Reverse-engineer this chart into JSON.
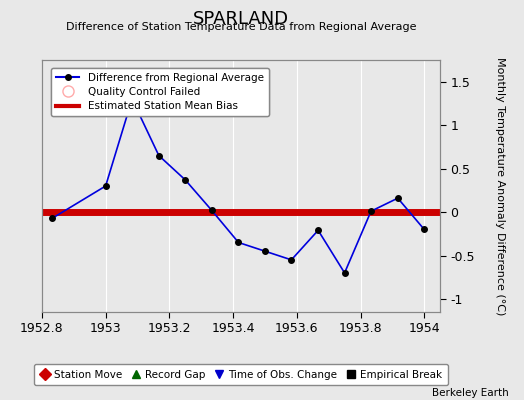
{
  "title": "SPARLAND",
  "subtitle": "Difference of Station Temperature Data from Regional Average",
  "ylabel": "Monthly Temperature Anomaly Difference (°C)",
  "xlim": [
    1952.8,
    1954.05
  ],
  "ylim": [
    -1.15,
    1.75
  ],
  "xticks": [
    1952.8,
    1953.0,
    1953.2,
    1953.4,
    1953.6,
    1953.8,
    1954.0
  ],
  "xtick_labels": [
    "1952.8",
    "1953",
    "1953.2",
    "1953.4",
    "1953.6",
    "1953.8",
    "1954"
  ],
  "yticks": [
    -1.0,
    -0.5,
    0.0,
    0.5,
    1.0,
    1.5
  ],
  "ytick_labels": [
    "-1",
    "-0.5",
    "0",
    "0.5",
    "1",
    "1.5"
  ],
  "background_color": "#e8e8e8",
  "grid_color": "#d0d0d0",
  "line_color": "#0000dd",
  "bias_color": "#cc0000",
  "bias_value": 0.0,
  "data_x": [
    1952.833,
    1953.0,
    1953.083,
    1953.167,
    1953.25,
    1953.333,
    1953.417,
    1953.5,
    1953.583,
    1953.667,
    1953.75,
    1953.833,
    1953.917,
    1954.0
  ],
  "data_y": [
    -0.07,
    0.3,
    1.3,
    0.65,
    0.37,
    0.02,
    -0.35,
    -0.45,
    -0.55,
    -0.21,
    -0.7,
    0.01,
    0.16,
    -0.2
  ],
  "watermark": "Berkeley Earth",
  "legend1_label": "Difference from Regional Average",
  "legend2_label": "Quality Control Failed",
  "legend3_label": "Estimated Station Mean Bias",
  "bottom_legend_labels": [
    "Station Move",
    "Record Gap",
    "Time of Obs. Change",
    "Empirical Break"
  ],
  "bottom_legend_colors": [
    "#cc0000",
    "#006600",
    "#0000cc",
    "#000000"
  ],
  "bottom_legend_markers": [
    "D",
    "^",
    "v",
    "s"
  ]
}
